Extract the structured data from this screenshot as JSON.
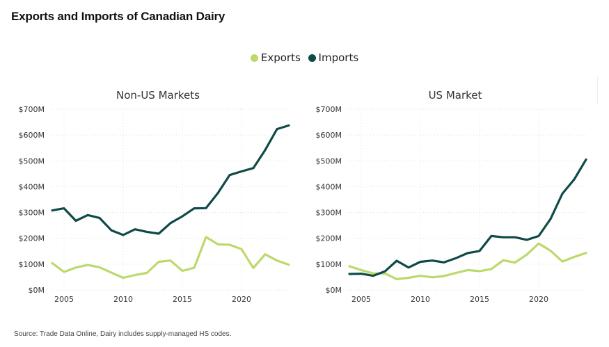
{
  "header": {
    "title": "Exports and Imports of Canadian Dairy"
  },
  "legend": [
    {
      "label": "Exports",
      "color": "#bcd96a"
    },
    {
      "label": "Imports",
      "color": "#0f4a47"
    }
  ],
  "source": "Source: Trade Data Online, Dairy includes supply-managed HS codes.",
  "chart_data": [
    {
      "type": "line",
      "title": "Non-US Markets",
      "xlabel": "",
      "ylabel": "",
      "x": [
        2004,
        2005,
        2006,
        2007,
        2008,
        2009,
        2010,
        2011,
        2012,
        2013,
        2014,
        2015,
        2016,
        2017,
        2018,
        2019,
        2020,
        2021,
        2022,
        2023,
        2024
      ],
      "xticks": [
        2005,
        2010,
        2015,
        2020
      ],
      "xtick_labels": [
        "2005",
        "2010",
        "2015",
        "2020"
      ],
      "ylim": [
        0,
        700
      ],
      "yticks": [
        0,
        100,
        200,
        300,
        400,
        500,
        600,
        700
      ],
      "ytick_labels": [
        "$0M",
        "$100M",
        "$200M",
        "$300M",
        "$400M",
        "$500M",
        "$600M",
        "$700M"
      ],
      "grid": true,
      "legend_position": "top-center",
      "series": [
        {
          "name": "Exports",
          "color": "#bcd96a",
          "values": [
            104,
            70,
            87,
            97,
            88,
            67,
            47,
            58,
            66,
            109,
            114,
            74,
            86,
            205,
            177,
            175,
            158,
            85,
            138,
            114,
            98
          ]
        },
        {
          "name": "Imports",
          "color": "#0f4a47",
          "values": [
            308,
            316,
            268,
            290,
            279,
            231,
            213,
            235,
            225,
            218,
            259,
            285,
            316,
            317,
            375,
            445,
            459,
            472,
            542,
            623,
            637
          ]
        }
      ]
    },
    {
      "type": "line",
      "title": "US Market",
      "xlabel": "",
      "ylabel": "",
      "x": [
        2004,
        2005,
        2006,
        2007,
        2008,
        2009,
        2010,
        2011,
        2012,
        2013,
        2014,
        2015,
        2016,
        2017,
        2018,
        2019,
        2020,
        2021,
        2022,
        2023,
        2024
      ],
      "xticks": [
        2005,
        2010,
        2015,
        2020
      ],
      "xtick_labels": [
        "2005",
        "2010",
        "2015",
        "2020"
      ],
      "ylim": [
        0,
        700
      ],
      "yticks": [
        0,
        100,
        200,
        300,
        400,
        500,
        600,
        700
      ],
      "ytick_labels": [
        "$0M",
        "$100M",
        "$200M",
        "$300M",
        "$400M",
        "$500M",
        "$600M",
        "$700M"
      ],
      "grid": true,
      "legend_position": "top-center",
      "series": [
        {
          "name": "Exports",
          "color": "#bcd96a",
          "values": [
            92,
            77,
            64,
            64,
            42,
            47,
            55,
            49,
            54,
            66,
            77,
            73,
            81,
            115,
            106,
            137,
            180,
            152,
            110,
            128,
            143
          ]
        },
        {
          "name": "Imports",
          "color": "#0f4a47",
          "values": [
            62,
            63,
            55,
            72,
            113,
            87,
            109,
            114,
            107,
            123,
            143,
            151,
            209,
            204,
            204,
            194,
            209,
            275,
            373,
            428,
            505
          ]
        }
      ]
    }
  ]
}
